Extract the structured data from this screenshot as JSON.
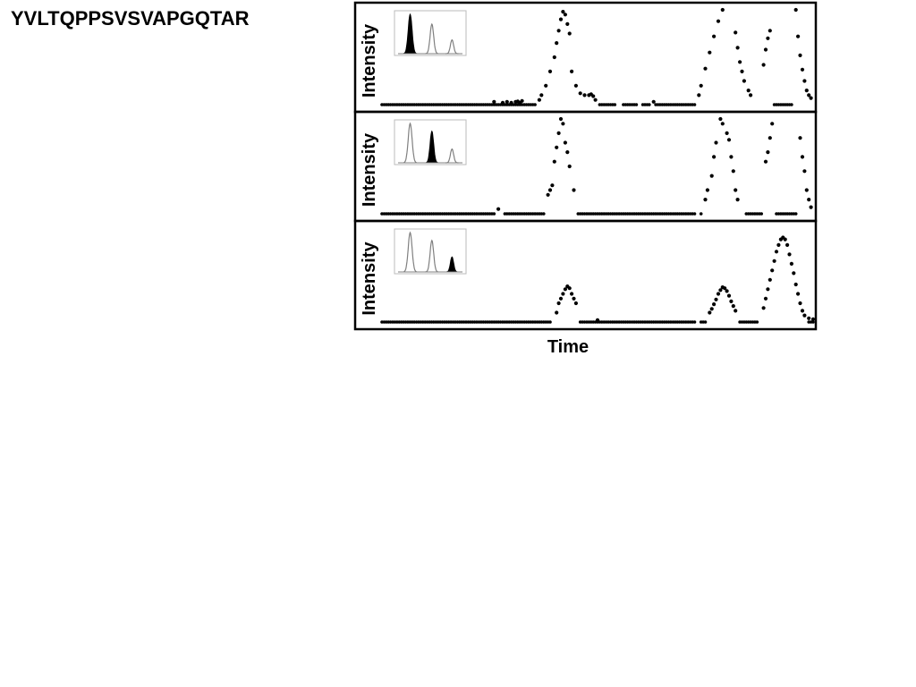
{
  "title": "YVLTQPPSVSVAPGQTAR",
  "ylabel": "Intensity",
  "xlabel": "Time",
  "colors": {
    "marker": "#000000",
    "frame": "#000000",
    "inset_fill": "#000000",
    "inset_line": "#808080",
    "background": "#ffffff"
  },
  "chart_data": [
    {
      "type": "scatter",
      "panel": "top",
      "ylabel": "Intensity",
      "xlim": [
        0,
        100
      ],
      "ylim": [
        0,
        100
      ],
      "baseline": 0,
      "gaps": [
        [
          54.5,
          55.5
        ],
        [
          59.5,
          60.0
        ],
        [
          62.5,
          63.0
        ]
      ],
      "points": [
        [
          26,
          3
        ],
        [
          28,
          2
        ],
        [
          29,
          3
        ],
        [
          30,
          2
        ],
        [
          31,
          3
        ],
        [
          31.5,
          3.5
        ],
        [
          32,
          2
        ],
        [
          32.5,
          4
        ],
        [
          36.5,
          5
        ],
        [
          37,
          10
        ],
        [
          38,
          20
        ],
        [
          39,
          35
        ],
        [
          40,
          50
        ],
        [
          40.5,
          65
        ],
        [
          41,
          78
        ],
        [
          41.5,
          90
        ],
        [
          42,
          98
        ],
        [
          42.5,
          95
        ],
        [
          43,
          85
        ],
        [
          43.5,
          75
        ],
        [
          44,
          35
        ],
        [
          45,
          20
        ],
        [
          46,
          12
        ],
        [
          47,
          10
        ],
        [
          48,
          10
        ],
        [
          48.5,
          11
        ],
        [
          49,
          9
        ],
        [
          49.5,
          5
        ],
        [
          63,
          3
        ],
        [
          73.5,
          10
        ],
        [
          74,
          20
        ],
        [
          75,
          38
        ],
        [
          76,
          55
        ],
        [
          77,
          72
        ],
        [
          78,
          88
        ],
        [
          79,
          100
        ],
        [
          82,
          76
        ],
        [
          82.5,
          60
        ],
        [
          83,
          45
        ],
        [
          83.5,
          35
        ],
        [
          84,
          25
        ],
        [
          85,
          15
        ],
        [
          85.5,
          10
        ],
        [
          88.5,
          42
        ],
        [
          89,
          58
        ],
        [
          89.5,
          70
        ],
        [
          90,
          78
        ],
        [
          96,
          100
        ],
        [
          96.5,
          72
        ],
        [
          97,
          52
        ],
        [
          97.5,
          37
        ],
        [
          98,
          25
        ],
        [
          98.5,
          15
        ],
        [
          99,
          10
        ],
        [
          99.5,
          7
        ]
      ],
      "inset": {
        "type": "area",
        "x": [
          0,
          1,
          2,
          3,
          4,
          5,
          6,
          7,
          8,
          9,
          10,
          11,
          12,
          13,
          14,
          15,
          16,
          17,
          18,
          19,
          20,
          21,
          22,
          23,
          24,
          25,
          26,
          27,
          28,
          29,
          30,
          31,
          32,
          33,
          34,
          35,
          36,
          37,
          38,
          39,
          40
        ],
        "series": [
          {
            "center": 7.5,
            "height": 100,
            "width": 1.2,
            "filled": true
          },
          {
            "center": 21,
            "height": 75,
            "width": 1.1,
            "filled": false
          },
          {
            "center": 33.5,
            "height": 35,
            "width": 1.0,
            "filled": false
          }
        ]
      }
    },
    {
      "type": "scatter",
      "panel": "middle",
      "ylabel": "Intensity",
      "xlim": [
        0,
        100
      ],
      "ylim": [
        0,
        100
      ],
      "baseline": 0,
      "gaps": [
        [
          27.5,
          28.0
        ],
        [
          38.0,
          39.5
        ],
        [
          73.0,
          73.5
        ],
        [
          83.5,
          84.0
        ]
      ],
      "points": [
        [
          27,
          5
        ],
        [
          38.5,
          20
        ],
        [
          39,
          25
        ],
        [
          39.5,
          30
        ],
        [
          40,
          55
        ],
        [
          40.5,
          70
        ],
        [
          41,
          85
        ],
        [
          41.5,
          100
        ],
        [
          42,
          95
        ],
        [
          42.5,
          75
        ],
        [
          43,
          65
        ],
        [
          43.5,
          50
        ],
        [
          44.5,
          25
        ],
        [
          75,
          15
        ],
        [
          75.5,
          25
        ],
        [
          76.5,
          40
        ],
        [
          77,
          60
        ],
        [
          77.5,
          75
        ],
        [
          78.5,
          100
        ],
        [
          79,
          95
        ],
        [
          80,
          85
        ],
        [
          80.5,
          78
        ],
        [
          81,
          60
        ],
        [
          81.5,
          45
        ],
        [
          82,
          25
        ],
        [
          82.5,
          15
        ],
        [
          89,
          55
        ],
        [
          89.5,
          65
        ],
        [
          90,
          80
        ],
        [
          90.5,
          95
        ],
        [
          97,
          80
        ],
        [
          97.5,
          60
        ],
        [
          98,
          45
        ],
        [
          98.5,
          25
        ],
        [
          99,
          15
        ],
        [
          99.5,
          7
        ]
      ],
      "inset": {
        "type": "area",
        "x": [
          0,
          1,
          2,
          3,
          4,
          5,
          6,
          7,
          8,
          9,
          10,
          11,
          12,
          13,
          14,
          15,
          16,
          17,
          18,
          19,
          20,
          21,
          22,
          23,
          24,
          25,
          26,
          27,
          28,
          29,
          30,
          31,
          32,
          33,
          34,
          35,
          36,
          37,
          38,
          39,
          40
        ],
        "series": [
          {
            "center": 7.5,
            "height": 100,
            "width": 1.2,
            "filled": false
          },
          {
            "center": 21,
            "height": 80,
            "width": 1.1,
            "filled": true
          },
          {
            "center": 33.5,
            "height": 35,
            "width": 1.0,
            "filled": false
          }
        ]
      }
    },
    {
      "type": "scatter",
      "panel": "bottom",
      "ylabel": "Intensity",
      "xlim": [
        0,
        100
      ],
      "ylim": [
        0,
        100
      ],
      "baseline": 0,
      "gaps": [
        [
          39.5,
          40.0
        ],
        [
          44.5,
          45.0
        ],
        [
          73.0,
          73.5
        ],
        [
          82.0,
          82.5
        ],
        [
          87.5,
          88.5
        ]
      ],
      "points": [
        [
          50,
          2
        ],
        [
          40.5,
          10
        ],
        [
          41,
          20
        ],
        [
          41.5,
          25
        ],
        [
          42,
          30
        ],
        [
          42.5,
          35
        ],
        [
          43,
          38
        ],
        [
          43.5,
          36
        ],
        [
          44,
          30
        ],
        [
          44.5,
          25
        ],
        [
          45,
          20
        ],
        [
          76,
          10
        ],
        [
          76.5,
          14
        ],
        [
          77,
          19
        ],
        [
          77.5,
          24
        ],
        [
          78,
          30
        ],
        [
          78.5,
          34
        ],
        [
          79,
          37
        ],
        [
          79.5,
          36
        ],
        [
          80,
          33
        ],
        [
          80.5,
          28
        ],
        [
          81,
          22
        ],
        [
          81.5,
          17
        ],
        [
          82,
          12
        ],
        [
          88.5,
          15
        ],
        [
          89,
          25
        ],
        [
          89.5,
          35
        ],
        [
          90,
          45
        ],
        [
          90.5,
          55
        ],
        [
          91,
          65
        ],
        [
          91.5,
          75
        ],
        [
          92,
          82
        ],
        [
          92.5,
          88
        ],
        [
          93,
          90
        ],
        [
          93.5,
          88
        ],
        [
          94,
          82
        ],
        [
          94.5,
          72
        ],
        [
          95,
          62
        ],
        [
          95.5,
          52
        ],
        [
          96,
          40
        ],
        [
          96.5,
          30
        ],
        [
          97,
          20
        ],
        [
          97.5,
          12
        ],
        [
          98,
          7
        ],
        [
          99,
          4
        ],
        [
          100,
          3
        ]
      ],
      "inset": {
        "type": "area",
        "x": [
          0,
          1,
          2,
          3,
          4,
          5,
          6,
          7,
          8,
          9,
          10,
          11,
          12,
          13,
          14,
          15,
          16,
          17,
          18,
          19,
          20,
          21,
          22,
          23,
          24,
          25,
          26,
          27,
          28,
          29,
          30,
          31,
          32,
          33,
          34,
          35,
          36,
          37,
          38,
          39,
          40
        ],
        "series": [
          {
            "center": 7.5,
            "height": 100,
            "width": 1.2,
            "filled": false
          },
          {
            "center": 21,
            "height": 80,
            "width": 1.1,
            "filled": false
          },
          {
            "center": 33.5,
            "height": 38,
            "width": 1.0,
            "filled": true
          }
        ]
      }
    }
  ]
}
